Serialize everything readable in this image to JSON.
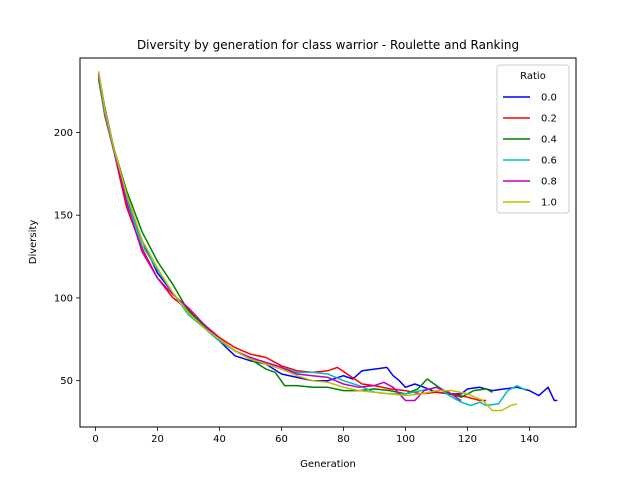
{
  "chart_data": {
    "type": "line",
    "title": "Diversity by generation for class warrior - Roulette and Ranking",
    "xlabel": "Generation",
    "ylabel": "Diversity",
    "xlim": [
      -5,
      155
    ],
    "ylim": [
      22,
      245
    ],
    "xticks": [
      0,
      20,
      40,
      60,
      80,
      100,
      120,
      140
    ],
    "yticks": [
      50,
      100,
      150,
      200
    ],
    "grid": false,
    "legend": {
      "title": "Ratio",
      "placement": "upper right"
    },
    "series": [
      {
        "name": "0.0",
        "color": "#0000ff",
        "points": [
          [
            1,
            236
          ],
          [
            3,
            215
          ],
          [
            6,
            190
          ],
          [
            10,
            160
          ],
          [
            15,
            135
          ],
          [
            20,
            115
          ],
          [
            25,
            103
          ],
          [
            30,
            90
          ],
          [
            35,
            82
          ],
          [
            40,
            74
          ],
          [
            45,
            65
          ],
          [
            50,
            62
          ],
          [
            55,
            60
          ],
          [
            60,
            54
          ],
          [
            65,
            52
          ],
          [
            70,
            50
          ],
          [
            75,
            50
          ],
          [
            80,
            53
          ],
          [
            83,
            51
          ],
          [
            86,
            56
          ],
          [
            90,
            57
          ],
          [
            94,
            58
          ],
          [
            96,
            53
          ],
          [
            98,
            50
          ],
          [
            100,
            46
          ],
          [
            103,
            48
          ],
          [
            106,
            46
          ],
          [
            110,
            43
          ],
          [
            114,
            42
          ],
          [
            118,
            42
          ],
          [
            120,
            45
          ],
          [
            124,
            46
          ],
          [
            128,
            44
          ],
          [
            132,
            45
          ],
          [
            136,
            46
          ],
          [
            140,
            44
          ],
          [
            143,
            41
          ],
          [
            146,
            46
          ],
          [
            148,
            38
          ],
          [
            149,
            38
          ]
        ]
      },
      {
        "name": "0.2",
        "color": "#ff0000",
        "points": [
          [
            1,
            233
          ],
          [
            3,
            210
          ],
          [
            6,
            188
          ],
          [
            10,
            155
          ],
          [
            15,
            130
          ],
          [
            20,
            112
          ],
          [
            25,
            100
          ],
          [
            30,
            93
          ],
          [
            35,
            84
          ],
          [
            40,
            76
          ],
          [
            45,
            70
          ],
          [
            50,
            66
          ],
          [
            55,
            64
          ],
          [
            60,
            59
          ],
          [
            65,
            56
          ],
          [
            70,
            55
          ],
          [
            75,
            56
          ],
          [
            78,
            58
          ],
          [
            82,
            53
          ],
          [
            86,
            48
          ],
          [
            90,
            47
          ],
          [
            95,
            45
          ],
          [
            100,
            44
          ],
          [
            105,
            42
          ],
          [
            110,
            43
          ],
          [
            115,
            42
          ],
          [
            120,
            40
          ],
          [
            124,
            38
          ],
          [
            126,
            38
          ]
        ]
      },
      {
        "name": "0.4",
        "color": "#008000",
        "points": [
          [
            1,
            232
          ],
          [
            3,
            212
          ],
          [
            6,
            190
          ],
          [
            10,
            165
          ],
          [
            15,
            140
          ],
          [
            20,
            122
          ],
          [
            25,
            108
          ],
          [
            30,
            92
          ],
          [
            35,
            83
          ],
          [
            40,
            75
          ],
          [
            45,
            68
          ],
          [
            50,
            63
          ],
          [
            55,
            57
          ],
          [
            58,
            55
          ],
          [
            61,
            47
          ],
          [
            65,
            47
          ],
          [
            70,
            46
          ],
          [
            75,
            46
          ],
          [
            80,
            44
          ],
          [
            85,
            44
          ],
          [
            90,
            45
          ],
          [
            95,
            44
          ],
          [
            100,
            42
          ],
          [
            104,
            45
          ],
          [
            107,
            51
          ],
          [
            110,
            47
          ],
          [
            114,
            42
          ],
          [
            118,
            40
          ],
          [
            122,
            44
          ],
          [
            126,
            45
          ],
          [
            128,
            43
          ]
        ]
      },
      {
        "name": "0.6",
        "color": "#00bfbf",
        "points": [
          [
            1,
            234
          ],
          [
            3,
            212
          ],
          [
            6,
            188
          ],
          [
            10,
            160
          ],
          [
            15,
            132
          ],
          [
            20,
            117
          ],
          [
            25,
            103
          ],
          [
            30,
            90
          ],
          [
            35,
            82
          ],
          [
            40,
            74
          ],
          [
            45,
            68
          ],
          [
            50,
            63
          ],
          [
            55,
            61
          ],
          [
            60,
            58
          ],
          [
            65,
            55
          ],
          [
            70,
            55
          ],
          [
            75,
            54
          ],
          [
            80,
            50
          ],
          [
            85,
            47
          ],
          [
            90,
            43
          ],
          [
            95,
            42
          ],
          [
            100,
            42
          ],
          [
            105,
            44
          ],
          [
            110,
            46
          ],
          [
            115,
            40
          ],
          [
            118,
            37
          ],
          [
            121,
            35
          ],
          [
            124,
            37
          ],
          [
            126,
            35
          ],
          [
            130,
            36
          ],
          [
            133,
            44
          ],
          [
            136,
            47
          ],
          [
            138,
            45
          ],
          [
            139,
            44
          ]
        ]
      },
      {
        "name": "0.8",
        "color": "#bf00bf",
        "points": [
          [
            1,
            235
          ],
          [
            3,
            214
          ],
          [
            6,
            189
          ],
          [
            10,
            158
          ],
          [
            15,
            128
          ],
          [
            20,
            112
          ],
          [
            25,
            102
          ],
          [
            30,
            94
          ],
          [
            35,
            84
          ],
          [
            40,
            75
          ],
          [
            45,
            68
          ],
          [
            50,
            64
          ],
          [
            55,
            61
          ],
          [
            60,
            58
          ],
          [
            65,
            54
          ],
          [
            70,
            53
          ],
          [
            75,
            52
          ],
          [
            80,
            48
          ],
          [
            85,
            46
          ],
          [
            90,
            47
          ],
          [
            93,
            49
          ],
          [
            96,
            46
          ],
          [
            100,
            38
          ],
          [
            103,
            38
          ],
          [
            106,
            44
          ],
          [
            110,
            46
          ],
          [
            114,
            43
          ],
          [
            117,
            39
          ],
          [
            118,
            38
          ]
        ]
      },
      {
        "name": "1.0",
        "color": "#bfbf00",
        "points": [
          [
            1,
            237
          ],
          [
            3,
            214
          ],
          [
            6,
            190
          ],
          [
            10,
            163
          ],
          [
            15,
            135
          ],
          [
            20,
            118
          ],
          [
            25,
            103
          ],
          [
            30,
            91
          ],
          [
            35,
            82
          ],
          [
            40,
            75
          ],
          [
            45,
            68
          ],
          [
            50,
            63
          ],
          [
            55,
            60
          ],
          [
            60,
            57
          ],
          [
            65,
            53
          ],
          [
            70,
            50
          ],
          [
            75,
            49
          ],
          [
            80,
            46
          ],
          [
            85,
            44
          ],
          [
            90,
            43
          ],
          [
            95,
            42
          ],
          [
            100,
            41
          ],
          [
            105,
            42
          ],
          [
            110,
            44
          ],
          [
            115,
            44
          ],
          [
            120,
            42
          ],
          [
            125,
            38
          ],
          [
            128,
            32
          ],
          [
            131,
            32
          ],
          [
            134,
            35
          ],
          [
            136,
            36
          ]
        ]
      }
    ]
  }
}
